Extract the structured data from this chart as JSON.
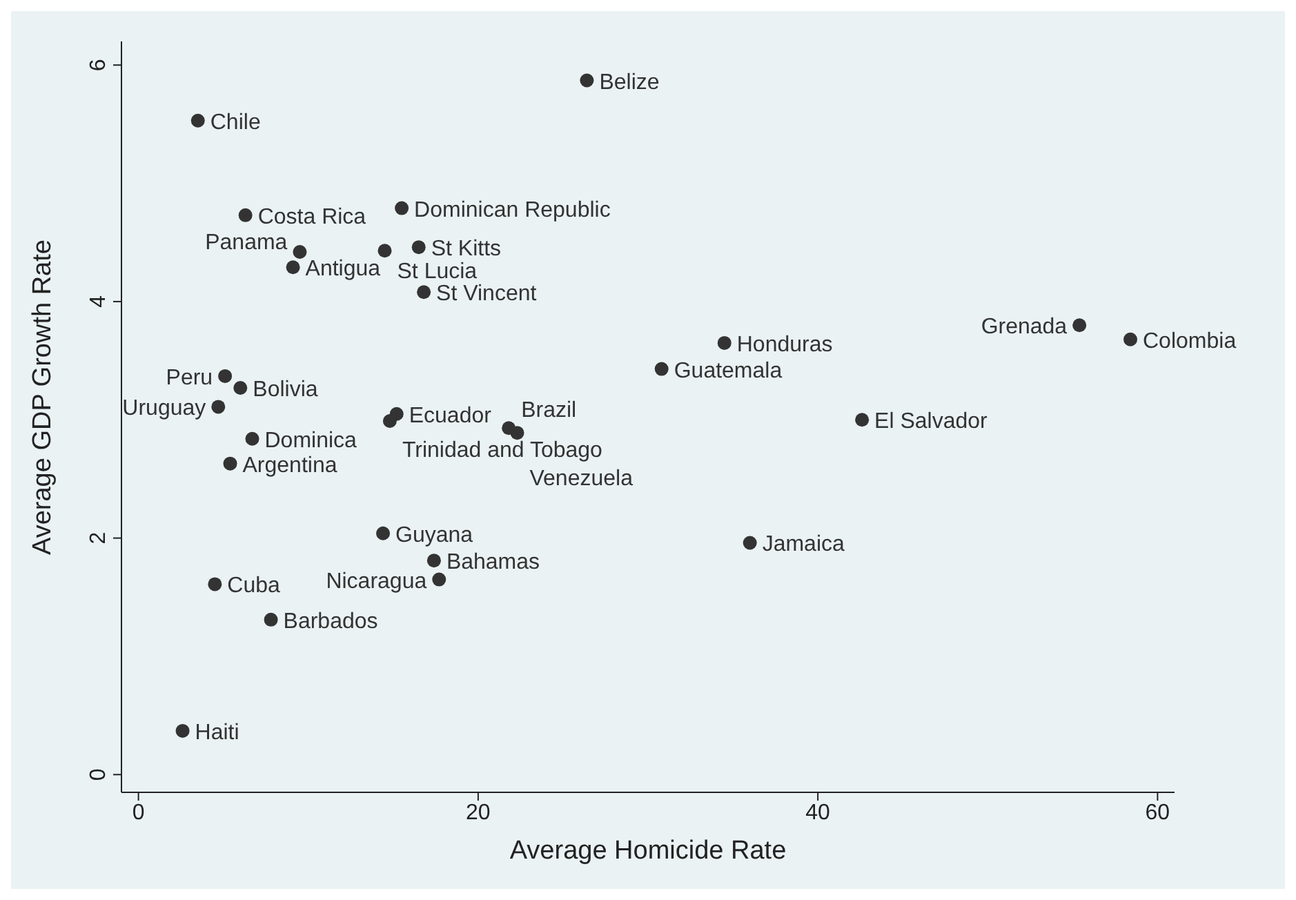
{
  "chart_data": {
    "type": "scatter",
    "xlabel": "Average Homicide Rate",
    "ylabel": "Average GDP Growth Rate",
    "xlim": [
      -1,
      61
    ],
    "xticks": [
      0,
      20,
      40,
      60
    ],
    "ylim": [
      -0.15,
      6.2
    ],
    "yticks": [
      0,
      2,
      4,
      6
    ],
    "grid": false,
    "legend": false,
    "marker": "circle",
    "series": [
      {
        "color": "#333333",
        "x": [
          26.4,
          3.5,
          6.3,
          15.5,
          9.5,
          14.5,
          16.5,
          9.1,
          16.8,
          34.5,
          55.4,
          58.4,
          30.8,
          5.1,
          6.0,
          4.7,
          15.2,
          14.8,
          21.8,
          22.3,
          42.6,
          6.7,
          5.4,
          14.4,
          36.0,
          17.4,
          17.7,
          4.5,
          7.8,
          2.6
        ],
        "values": [
          5.87,
          5.53,
          4.73,
          4.79,
          4.42,
          4.43,
          4.46,
          4.29,
          4.08,
          3.65,
          3.8,
          3.68,
          3.43,
          3.37,
          3.27,
          3.11,
          3.05,
          2.99,
          2.93,
          2.89,
          3.0,
          2.84,
          2.63,
          2.04,
          1.96,
          1.81,
          1.65,
          1.61,
          1.31,
          0.37
        ]
      }
    ],
    "annotations": [
      {
        "text": "Belize",
        "x": 26.4,
        "y": 5.87
      },
      {
        "text": "Chile",
        "x": 3.5,
        "y": 5.53
      },
      {
        "text": "Costa Rica",
        "x": 6.3,
        "y": 4.73
      },
      {
        "text": "Dominican Republic",
        "x": 15.5,
        "y": 4.79
      },
      {
        "text": "Panama",
        "x": 9.5,
        "y": 4.42
      },
      {
        "text": "St Lucia",
        "x": 14.5,
        "y": 4.43
      },
      {
        "text": "St Kitts",
        "x": 16.5,
        "y": 4.46
      },
      {
        "text": "Antigua",
        "x": 9.1,
        "y": 4.29
      },
      {
        "text": "St Vincent",
        "x": 16.8,
        "y": 4.08
      },
      {
        "text": "Honduras",
        "x": 34.5,
        "y": 3.65
      },
      {
        "text": "Grenada",
        "x": 55.4,
        "y": 3.8
      },
      {
        "text": "Colombia",
        "x": 58.4,
        "y": 3.68
      },
      {
        "text": "Guatemala",
        "x": 30.8,
        "y": 3.43
      },
      {
        "text": "Peru",
        "x": 5.1,
        "y": 3.37
      },
      {
        "text": "Bolivia",
        "x": 6.0,
        "y": 3.27
      },
      {
        "text": "Uruguay",
        "x": 4.7,
        "y": 3.11
      },
      {
        "text": "Ecuador",
        "x": 15.2,
        "y": 3.05
      },
      {
        "text": "Trinidad and Tobago",
        "x": 14.8,
        "y": 2.99
      },
      {
        "text": "Brazil",
        "x": 21.8,
        "y": 2.93
      },
      {
        "text": "Venezuela",
        "x": 22.3,
        "y": 2.89
      },
      {
        "text": "El Salvador",
        "x": 42.6,
        "y": 3.0
      },
      {
        "text": "Dominica",
        "x": 6.7,
        "y": 2.84
      },
      {
        "text": "Argentina",
        "x": 5.4,
        "y": 2.63
      },
      {
        "text": "Guyana",
        "x": 14.4,
        "y": 2.04
      },
      {
        "text": "Jamaica",
        "x": 36.0,
        "y": 1.96
      },
      {
        "text": "Bahamas",
        "x": 17.4,
        "y": 1.81
      },
      {
        "text": "Nicaragua",
        "x": 17.7,
        "y": 1.65
      },
      {
        "text": "Cuba",
        "x": 4.5,
        "y": 1.61
      },
      {
        "text": "Barbados",
        "x": 7.8,
        "y": 1.31
      },
      {
        "text": "Haiti",
        "x": 2.6,
        "y": 0.37
      }
    ]
  }
}
